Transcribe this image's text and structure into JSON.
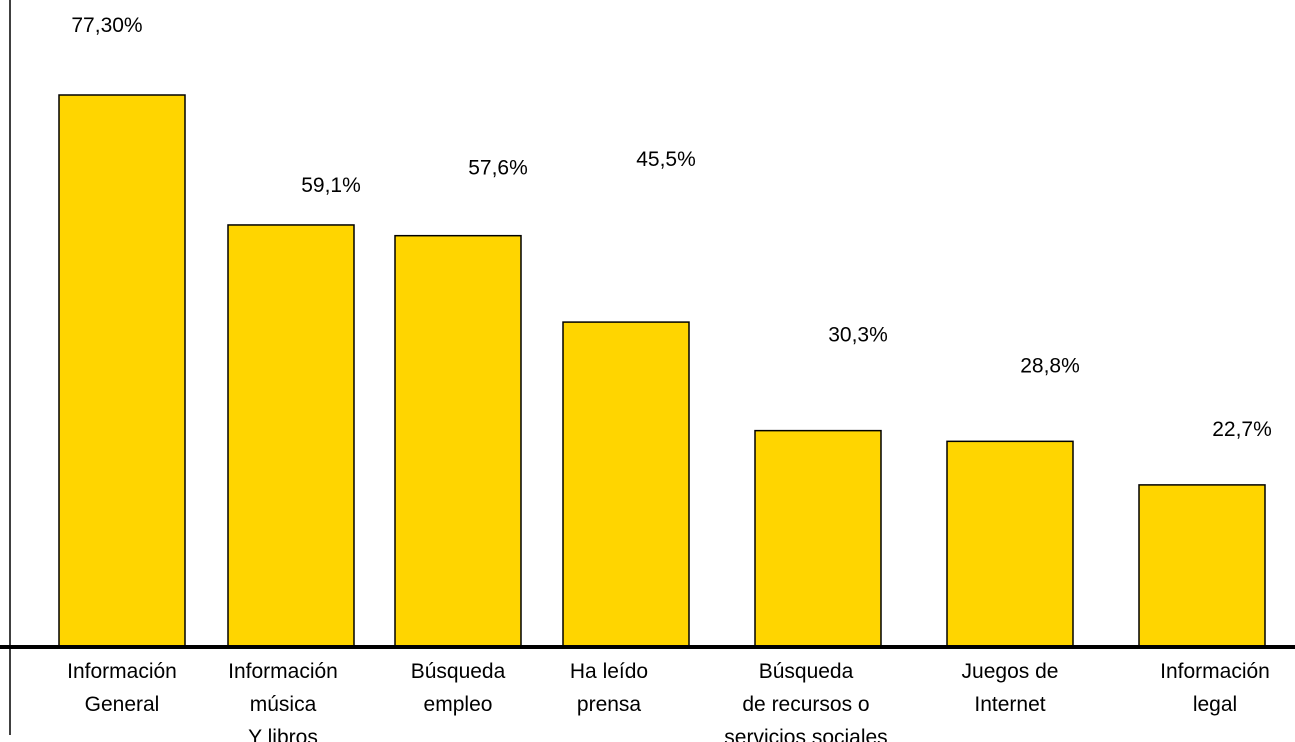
{
  "chart_data": {
    "type": "bar",
    "categories": [
      [
        "Información",
        "General"
      ],
      [
        "Información",
        "música",
        "Y libros"
      ],
      [
        "Búsqueda",
        "empleo"
      ],
      [
        "Ha leído",
        "prensa"
      ],
      [
        "Búsqueda",
        "de recursos o",
        "servicios sociales"
      ],
      [
        "Juegos de",
        "Internet"
      ],
      [
        "Información",
        "legal"
      ]
    ],
    "values": [
      77.3,
      59.1,
      57.6,
      45.5,
      30.3,
      28.8,
      22.7
    ],
    "data_labels": [
      "77,30%",
      "59,1%",
      "57,6%",
      "45,5%",
      "30,3%",
      "28,8%",
      "22,7%"
    ],
    "colors": {
      "bar": "#FFD500",
      "stroke": "#000000"
    },
    "legend": "none",
    "grid": false
  }
}
